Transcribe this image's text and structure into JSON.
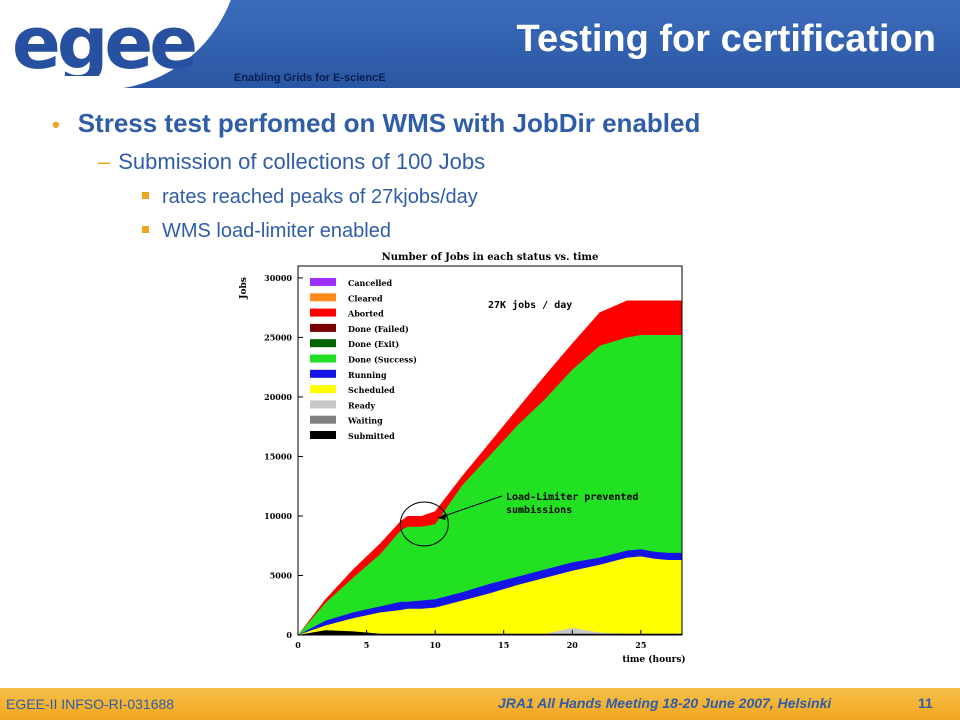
{
  "header": {
    "title": "Testing for certification",
    "logo_text": "egee",
    "tagline": "Enabling Grids for E-sciencE",
    "colors": {
      "band": "#2b5aa6",
      "logo_blue": "#2750a0",
      "logo_yellow": "#f6c80f"
    }
  },
  "content": {
    "bullet1": "Stress test perfomed on WMS with JobDir enabled",
    "sub1": "Submission of collections of 100 Jobs",
    "sub1a": "rates reached peaks of 27kjobs/day",
    "sub1b": "WMS load-limiter enabled"
  },
  "chart_data": {
    "type": "area",
    "title": "Number of Jobs in each status vs. time",
    "xlabel": "time (hours)",
    "ylabel": "Jobs",
    "xlim": [
      0,
      28
    ],
    "ylim": [
      0,
      31000
    ],
    "x_ticks": [
      0,
      5,
      10,
      15,
      20,
      25
    ],
    "y_ticks": [
      0,
      5000,
      10000,
      15000,
      20000,
      25000,
      30000
    ],
    "legend_position": "top-left",
    "legend": [
      {
        "name": "Cancelled",
        "color": "#9b30ff"
      },
      {
        "name": "Cleared",
        "color": "#ff8c1a"
      },
      {
        "name": "Aborted",
        "color": "#ff0000"
      },
      {
        "name": "Done (Failed)",
        "color": "#7a0000"
      },
      {
        "name": "Done (Exit)",
        "color": "#006400"
      },
      {
        "name": "Done (Success)",
        "color": "#22e022"
      },
      {
        "name": "Running",
        "color": "#1414e6"
      },
      {
        "name": "Scheduled",
        "color": "#ffff00"
      },
      {
        "name": "Ready",
        "color": "#c8c8c8"
      },
      {
        "name": "Waiting",
        "color": "#808080"
      },
      {
        "name": "Submitted",
        "color": "#000000"
      }
    ],
    "x": [
      0,
      2,
      4,
      6,
      7.5,
      8,
      9,
      10,
      12,
      14,
      16,
      18,
      20,
      22,
      24,
      25,
      26,
      27,
      28
    ],
    "cumulative_top": {
      "Submitted": [
        0,
        400,
        300,
        100,
        100,
        100,
        100,
        100,
        100,
        100,
        100,
        100,
        100,
        100,
        100,
        100,
        100,
        100,
        100
      ],
      "Ready": [
        0,
        400,
        300,
        100,
        100,
        100,
        100,
        100,
        100,
        100,
        100,
        100,
        600,
        200,
        100,
        100,
        100,
        100,
        100
      ],
      "Scheduled": [
        0,
        800,
        1400,
        1900,
        2100,
        2200,
        2200,
        2300,
        2900,
        3500,
        4200,
        4800,
        5400,
        5900,
        6500,
        6600,
        6400,
        6300,
        6300
      ],
      "Running": [
        0,
        1200,
        1900,
        2400,
        2800,
        2800,
        2900,
        3000,
        3600,
        4300,
        4900,
        5500,
        6100,
        6500,
        7100,
        7200,
        7000,
        6900,
        6900
      ],
      "Done (Success)": [
        0,
        2700,
        4800,
        6800,
        8800,
        9100,
        9100,
        9300,
        12600,
        15100,
        17600,
        19800,
        22300,
        24300,
        25000,
        25200,
        25200,
        25200,
        25200
      ],
      "Aborted": [
        0,
        3000,
        5500,
        7700,
        9600,
        10000,
        10000,
        10400,
        13400,
        16200,
        19000,
        21800,
        24500,
        27100,
        28100,
        28100,
        28100,
        28100,
        28100
      ]
    },
    "annotations": [
      {
        "text": "27K jobs / day"
      },
      {
        "text": "Load-Limiter prevented",
        "text2": "sumbissions",
        "target_x": 9.5,
        "target_y": 10000
      }
    ]
  },
  "footer": {
    "left": "EGEE-II INFSO-RI-031688",
    "center": "JRA1 All Hands Meeting 18-20 June 2007, Helsinki",
    "page": "11"
  }
}
